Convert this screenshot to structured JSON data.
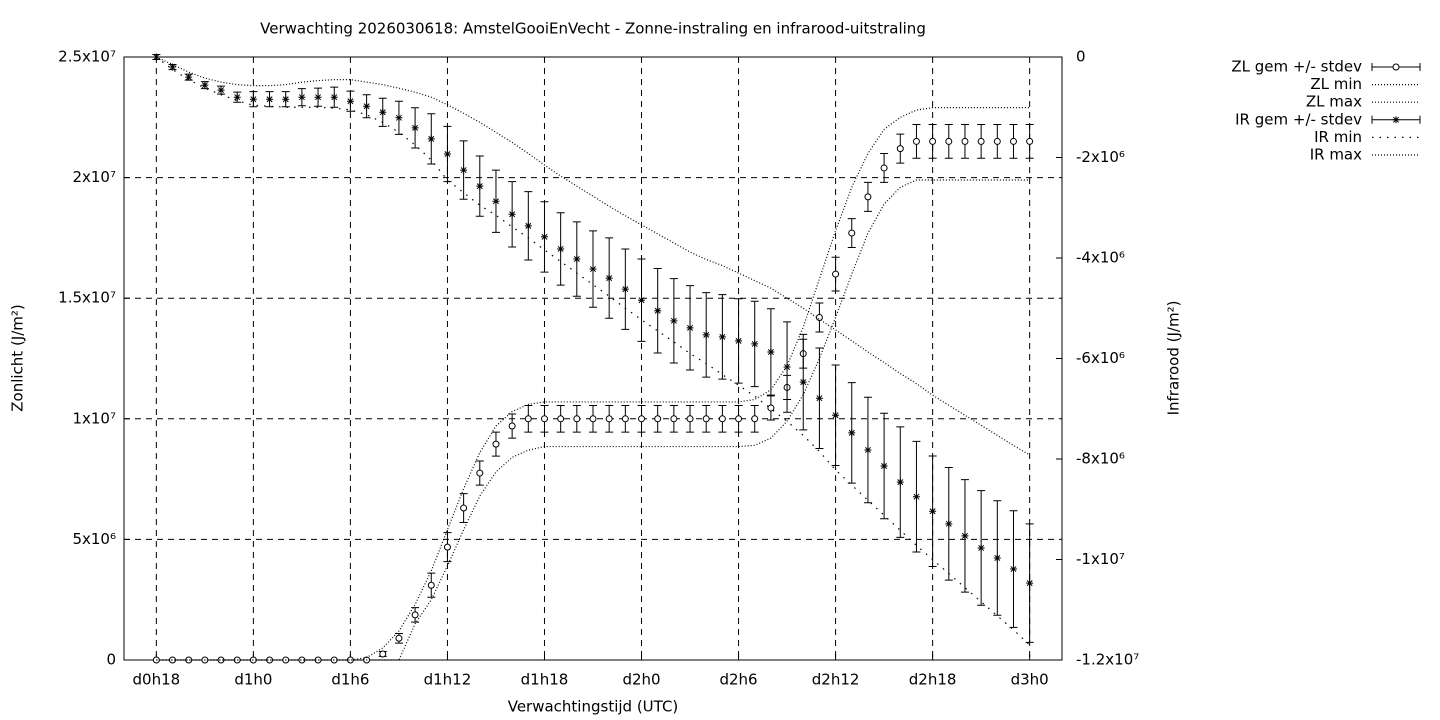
{
  "chart_data": {
    "type": "errorbar-line",
    "title": "Verwachting 2026030618: AmstelGooiEnVecht - Zonne-instraling en infrarood-uitstraling",
    "x_label": "Verwachtingstijd (UTC)",
    "y_label": "Zonlicht (J/m²)",
    "y2_label": "Infrarood (J/m²)",
    "grid": true,
    "legend": "outside-top-right",
    "xlim": [
      16,
      74
    ],
    "xticks": [
      {
        "value": 18,
        "label": "d0h18"
      },
      {
        "value": 24,
        "label": "d1h0"
      },
      {
        "value": 30,
        "label": "d1h6"
      },
      {
        "value": 36,
        "label": "d1h12"
      },
      {
        "value": 42,
        "label": "d1h18"
      },
      {
        "value": 48,
        "label": "d2h0"
      },
      {
        "value": 54,
        "label": "d2h6"
      },
      {
        "value": 60,
        "label": "d2h12"
      },
      {
        "value": 66,
        "label": "d2h18"
      },
      {
        "value": 72,
        "label": "d3h0"
      }
    ],
    "ylim": [
      0,
      25000000
    ],
    "yticks": [
      0,
      {
        "value": 5000000,
        "label": "5x10⁶"
      },
      {
        "value": 10000000,
        "label": "1x10⁷"
      },
      {
        "value": 15000000,
        "label": "1.5x10⁷"
      },
      {
        "value": 20000000,
        "label": "2x10⁷"
      },
      {
        "value": 25000000,
        "label": "2.5x10⁷"
      }
    ],
    "y2lim": [
      -12000000,
      0
    ],
    "y2ticks": [
      0,
      {
        "value": -2000000,
        "label": "-2x10⁶"
      },
      {
        "value": -4000000,
        "label": "-4x10⁶"
      },
      {
        "value": -6000000,
        "label": "-6x10⁶"
      },
      {
        "value": -8000000,
        "label": "-8x10⁶"
      },
      {
        "value": -10000000,
        "label": "-1x10⁷"
      },
      {
        "value": -12000000,
        "label": "-1.2x10⁷"
      }
    ],
    "x": [
      18,
      19,
      20,
      21,
      22,
      23,
      24,
      25,
      26,
      27,
      28,
      29,
      30,
      31,
      32,
      33,
      34,
      35,
      36,
      37,
      38,
      39,
      40,
      41,
      42,
      43,
      44,
      45,
      46,
      47,
      48,
      49,
      50,
      51,
      52,
      53,
      54,
      55,
      56,
      57,
      58,
      59,
      60,
      61,
      62,
      63,
      64,
      65,
      66,
      67,
      68,
      69,
      70,
      71,
      72
    ],
    "series": [
      {
        "name": "ZL gem +/- stdev",
        "color": "#000000",
        "style": "errorbars",
        "marker": "circle",
        "values": [
          0,
          0,
          0,
          0,
          0,
          0,
          0,
          0,
          0,
          0,
          0,
          0,
          0,
          0,
          250000,
          900000,
          1870000,
          3100000,
          4680000,
          6300000,
          7750000,
          8950000,
          9700000,
          10000000,
          10000000,
          10000000,
          10000000,
          10000000,
          10000000,
          10000000,
          10000000,
          10000000,
          10000000,
          10000000,
          10000000,
          10000000,
          10000000,
          10000000,
          10450000,
          11300000,
          12700000,
          14200000,
          16000000,
          17700000,
          19200000,
          20400000,
          21200000,
          21500000,
          21500000,
          21500000,
          21500000,
          21500000,
          21500000,
          21500000,
          21500000
        ],
        "errors": [
          0,
          0,
          0,
          0,
          0,
          0,
          0,
          0,
          0,
          0,
          0,
          0,
          0,
          0,
          100000,
          200000,
          300000,
          500000,
          600000,
          600000,
          500000,
          500000,
          500000,
          550000,
          550000,
          550000,
          550000,
          550000,
          550000,
          550000,
          550000,
          550000,
          550000,
          550000,
          550000,
          550000,
          550000,
          550000,
          500000,
          500000,
          600000,
          600000,
          700000,
          600000,
          600000,
          600000,
          600000,
          700000,
          700000,
          700000,
          700000,
          700000,
          700000,
          700000,
          700000
        ]
      },
      {
        "name": "ZL min",
        "color": "#000000",
        "style": "dotted",
        "values": [
          0,
          0,
          0,
          0,
          0,
          0,
          0,
          0,
          0,
          0,
          0,
          0,
          0,
          0,
          0,
          0,
          1500000,
          2500000,
          3900000,
          5400000,
          6800000,
          7800000,
          8400000,
          8700000,
          8850000,
          8850000,
          8850000,
          8850000,
          8850000,
          8850000,
          8850000,
          8850000,
          8850000,
          8850000,
          8850000,
          8850000,
          8850000,
          8900000,
          9200000,
          9900000,
          11000000,
          12500000,
          14200000,
          16000000,
          17700000,
          18900000,
          19600000,
          19900000,
          19900000,
          19900000,
          19900000,
          19900000,
          19900000,
          19900000,
          19900000
        ]
      },
      {
        "name": "ZL max",
        "color": "#000000",
        "style": "dotted",
        "values": [
          0,
          0,
          0,
          0,
          0,
          0,
          0,
          0,
          0,
          0,
          0,
          0,
          0,
          100000,
          500000,
          1200000,
          2300000,
          3700000,
          5400000,
          7100000,
          8600000,
          9700000,
          10300000,
          10600000,
          10700000,
          10700000,
          10700000,
          10700000,
          10700000,
          10700000,
          10700000,
          10700000,
          10700000,
          10700000,
          10700000,
          10700000,
          10700000,
          10800000,
          11200000,
          12200000,
          13800000,
          15800000,
          17800000,
          19600000,
          21000000,
          22000000,
          22500000,
          22800000,
          22900000,
          22900000,
          22900000,
          22900000,
          22900000,
          22900000,
          22900000
        ]
      },
      {
        "name": "IR gem +/- stdev",
        "color": "#000000",
        "style": "errorbars",
        "marker": "star",
        "axis": "y2",
        "values": [
          0,
          -200000,
          -400000,
          -560000,
          -660000,
          -800000,
          -840000,
          -840000,
          -840000,
          -800000,
          -800000,
          -800000,
          -880000,
          -980000,
          -1100000,
          -1210000,
          -1410000,
          -1630000,
          -1930000,
          -2250000,
          -2570000,
          -2870000,
          -3130000,
          -3360000,
          -3580000,
          -3820000,
          -4020000,
          -4220000,
          -4400000,
          -4620000,
          -4840000,
          -5050000,
          -5250000,
          -5390000,
          -5530000,
          -5570000,
          -5650000,
          -5710000,
          -5870000,
          -6170000,
          -6470000,
          -6790000,
          -7130000,
          -7480000,
          -7820000,
          -8140000,
          -8460000,
          -8750000,
          -9040000,
          -9290000,
          -9530000,
          -9770000,
          -9970000,
          -10190000,
          -10470000
        ],
        "errors": [
          50000,
          50000,
          60000,
          70000,
          80000,
          100000,
          150000,
          150000,
          150000,
          170000,
          180000,
          200000,
          200000,
          230000,
          280000,
          330000,
          400000,
          500000,
          550000,
          580000,
          600000,
          620000,
          650000,
          680000,
          700000,
          720000,
          740000,
          760000,
          800000,
          800000,
          820000,
          840000,
          840000,
          840000,
          840000,
          840000,
          840000,
          850000,
          860000,
          900000,
          950000,
          1000000,
          1000000,
          1000000,
          1050000,
          1050000,
          1100000,
          1100000,
          1100000,
          1120000,
          1120000,
          1140000,
          1140000,
          1160000,
          1180000
        ]
      },
      {
        "name": "IR min",
        "color": "#000000",
        "style": "sparse-dotted",
        "axis": "y2",
        "values": [
          0,
          -250000,
          -450000,
          -620000,
          -750000,
          -870000,
          -960000,
          -980000,
          -1000000,
          -1000000,
          -1000000,
          -1020000,
          -1050000,
          -1150000,
          -1300000,
          -1500000,
          -1750000,
          -2050000,
          -2450000,
          -2700000,
          -2950000,
          -3150000,
          -3380000,
          -3600000,
          -3840000,
          -4070000,
          -4300000,
          -4530000,
          -4760000,
          -5000000,
          -5230000,
          -5450000,
          -5670000,
          -5900000,
          -6100000,
          -6320000,
          -6530000,
          -6750000,
          -7000000,
          -7250000,
          -7530000,
          -7850000,
          -8220000,
          -8520000,
          -8820000,
          -9120000,
          -9420000,
          -9720000,
          -10000000,
          -10280000,
          -10560000,
          -10840000,
          -11120000,
          -11400000,
          -11700000
        ]
      },
      {
        "name": "IR max",
        "color": "#000000",
        "style": "dotted",
        "axis": "y2",
        "values": [
          0,
          -150000,
          -300000,
          -420000,
          -500000,
          -550000,
          -570000,
          -570000,
          -550000,
          -500000,
          -470000,
          -450000,
          -450000,
          -500000,
          -550000,
          -620000,
          -700000,
          -800000,
          -950000,
          -1120000,
          -1300000,
          -1500000,
          -1700000,
          -1920000,
          -2150000,
          -2370000,
          -2570000,
          -2770000,
          -2970000,
          -3160000,
          -3340000,
          -3520000,
          -3700000,
          -3880000,
          -4030000,
          -4150000,
          -4300000,
          -4450000,
          -4600000,
          -4800000,
          -5000000,
          -5220000,
          -5430000,
          -5650000,
          -5870000,
          -6080000,
          -6300000,
          -6500000,
          -6730000,
          -6930000,
          -7130000,
          -7330000,
          -7530000,
          -7730000,
          -7920000
        ]
      }
    ]
  }
}
